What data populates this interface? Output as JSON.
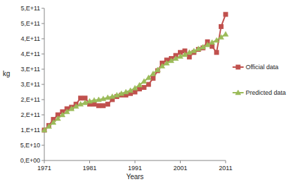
{
  "chart_data": {
    "type": "line",
    "x_label": "Years",
    "y_label": "kg",
    "x": [
      1971,
      1972,
      1973,
      1974,
      1975,
      1976,
      1977,
      1978,
      1979,
      1980,
      1981,
      1982,
      1983,
      1984,
      1985,
      1986,
      1987,
      1988,
      1989,
      1990,
      1991,
      1992,
      1993,
      1994,
      1995,
      1996,
      1997,
      1998,
      1999,
      2000,
      2001,
      2002,
      2003,
      2004,
      2005,
      2006,
      2007,
      2008,
      2009,
      2010,
      2011
    ],
    "series": [
      {
        "name": "Official data",
        "color": "#c0504d",
        "marker": "square",
        "line_style": "solid",
        "values": [
          100000000000.0,
          115000000000.0,
          135000000000.0,
          150000000000.0,
          160000000000.0,
          170000000000.0,
          175000000000.0,
          185000000000.0,
          205000000000.0,
          205000000000.0,
          185000000000.0,
          185000000000.0,
          180000000000.0,
          180000000000.0,
          185000000000.0,
          200000000000.0,
          210000000000.0,
          215000000000.0,
          215000000000.0,
          220000000000.0,
          225000000000.0,
          235000000000.0,
          240000000000.0,
          250000000000.0,
          270000000000.0,
          295000000000.0,
          320000000000.0,
          330000000000.0,
          335000000000.0,
          345000000000.0,
          355000000000.0,
          360000000000.0,
          340000000000.0,
          355000000000.0,
          365000000000.0,
          370000000000.0,
          390000000000.0,
          375000000000.0,
          355000000000.0,
          440000000000.0,
          480000000000.0
        ]
      },
      {
        "name": "Predicted data",
        "color": "#9bbb59",
        "marker": "triangle",
        "line_style": "solid",
        "values": [
          100000000000.0,
          112000000000.0,
          125000000000.0,
          138000000000.0,
          150000000000.0,
          160000000000.0,
          170000000000.0,
          178000000000.0,
          185000000000.0,
          190000000000.0,
          195000000000.0,
          198000000000.0,
          200000000000.0,
          203000000000.0,
          207000000000.0,
          210000000000.0,
          215000000000.0,
          220000000000.0,
          225000000000.0,
          230000000000.0,
          238000000000.0,
          248000000000.0,
          260000000000.0,
          272000000000.0,
          285000000000.0,
          298000000000.0,
          310000000000.0,
          320000000000.0,
          328000000000.0,
          335000000000.0,
          342000000000.0,
          348000000000.0,
          355000000000.0,
          360000000000.0,
          367000000000.0,
          373000000000.0,
          380000000000.0,
          388000000000.0,
          395000000000.0,
          405000000000.0,
          415000000000.0
        ]
      }
    ],
    "xlim": [
      1971,
      2011
    ],
    "xticks": [
      1971,
      1981,
      1991,
      2001,
      2011
    ],
    "ylim": [
      0,
      500000000000.0
    ],
    "yticks": [
      {
        "value": 0,
        "label": "0,E+00"
      },
      {
        "value": 50000000000.0,
        "label": "5,E+10"
      },
      {
        "value": 100000000000.0,
        "label": "1,E+11"
      },
      {
        "value": 150000000000.0,
        "label": "2,E+11"
      },
      {
        "value": 200000000000.0,
        "label": "2,E+11"
      },
      {
        "value": 250000000000.0,
        "label": "3,E+11"
      },
      {
        "value": 300000000000.0,
        "label": "3,E+11"
      },
      {
        "value": 350000000000.0,
        "label": "4,E+11"
      },
      {
        "value": 400000000000.0,
        "label": "4,E+11"
      },
      {
        "value": 450000000000.0,
        "label": "5,E+11"
      },
      {
        "value": 500000000000.0,
        "label": "5,E+11"
      }
    ],
    "grid": false,
    "legend": "right"
  }
}
